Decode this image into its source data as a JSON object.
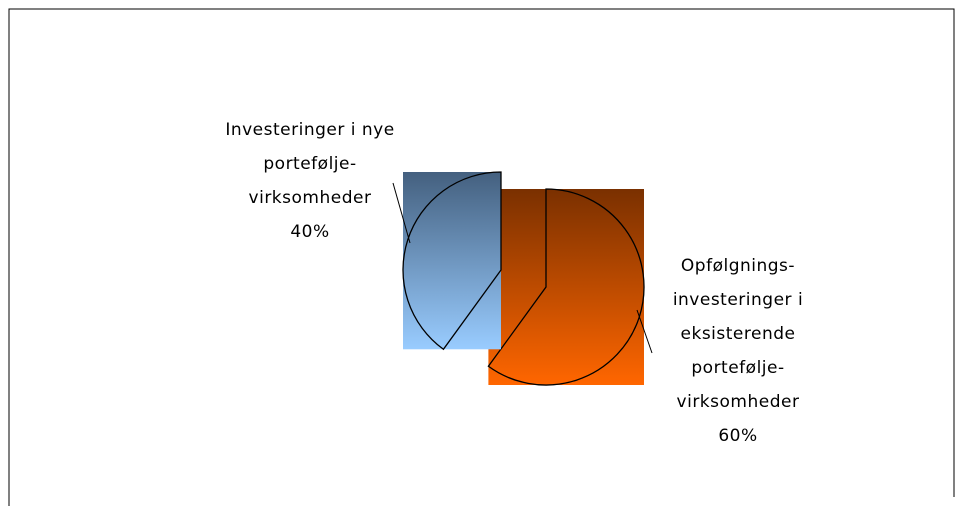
{
  "chart_data": {
    "type": "pie",
    "categories": [
      "Investeringer i nye portefølje-virksomheder",
      "Opfølgnings-investeringer i eksisterende portefølje-virksomheder"
    ],
    "values": [
      40,
      60
    ],
    "value_labels": [
      "40%",
      "60%"
    ],
    "colors": [
      "#99ccff",
      "#ff6600"
    ]
  }
}
